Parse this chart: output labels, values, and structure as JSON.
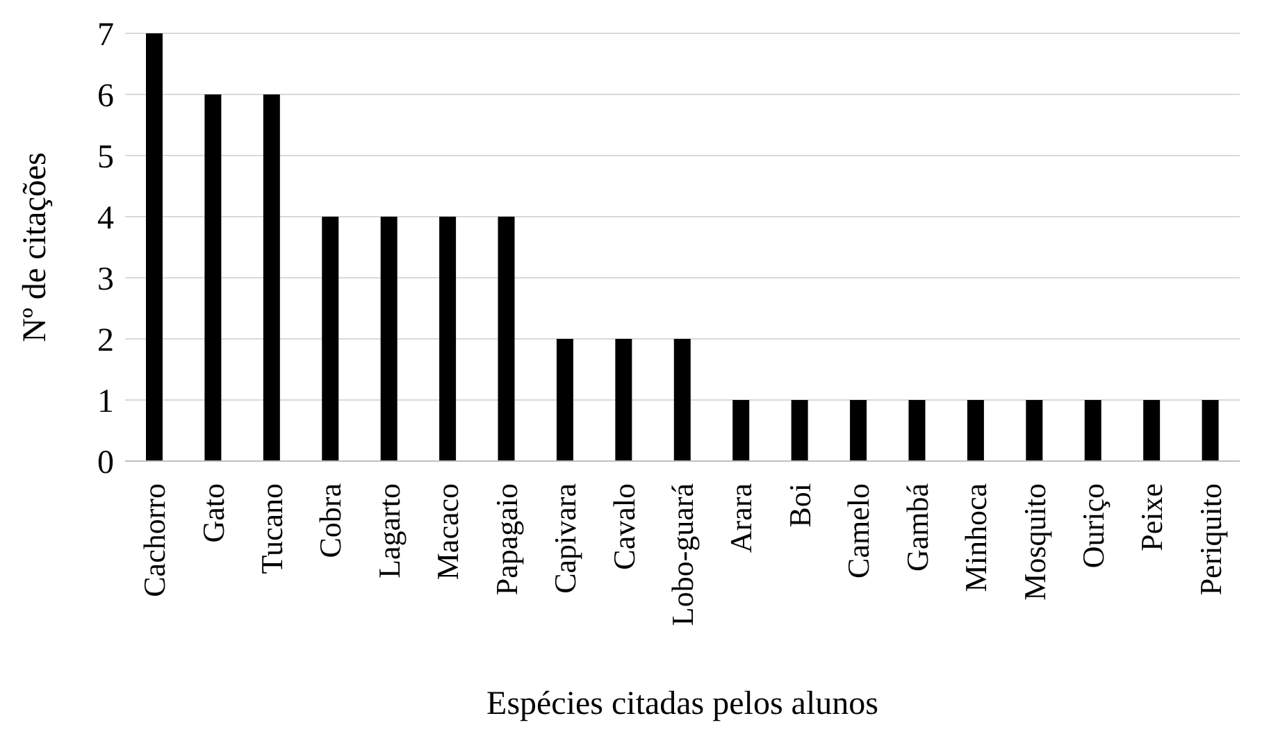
{
  "chart_data": {
    "type": "bar",
    "xlabel": "Espécies citadas pelos alunos",
    "ylabel": "Nº de citações",
    "categories": [
      "Cachorro",
      "Gato",
      "Tucano",
      "Cobra",
      "Lagarto",
      "Macaco",
      "Papagaio",
      "Capivara",
      "Cavalo",
      "Lobo-guará",
      "Arara",
      "Boi",
      "Camelo",
      "Gambá",
      "Minhoca",
      "Mosquito",
      "Ouriço",
      "Peixe",
      "Periquito"
    ],
    "values": [
      7,
      6,
      6,
      4,
      4,
      4,
      4,
      2,
      2,
      2,
      1,
      1,
      1,
      1,
      1,
      1,
      1,
      1,
      1
    ],
    "color": "#000000",
    "ylim": [
      0,
      7
    ],
    "yticks": [
      0,
      1,
      2,
      3,
      4,
      5,
      6,
      7
    ],
    "grid": "y"
  }
}
